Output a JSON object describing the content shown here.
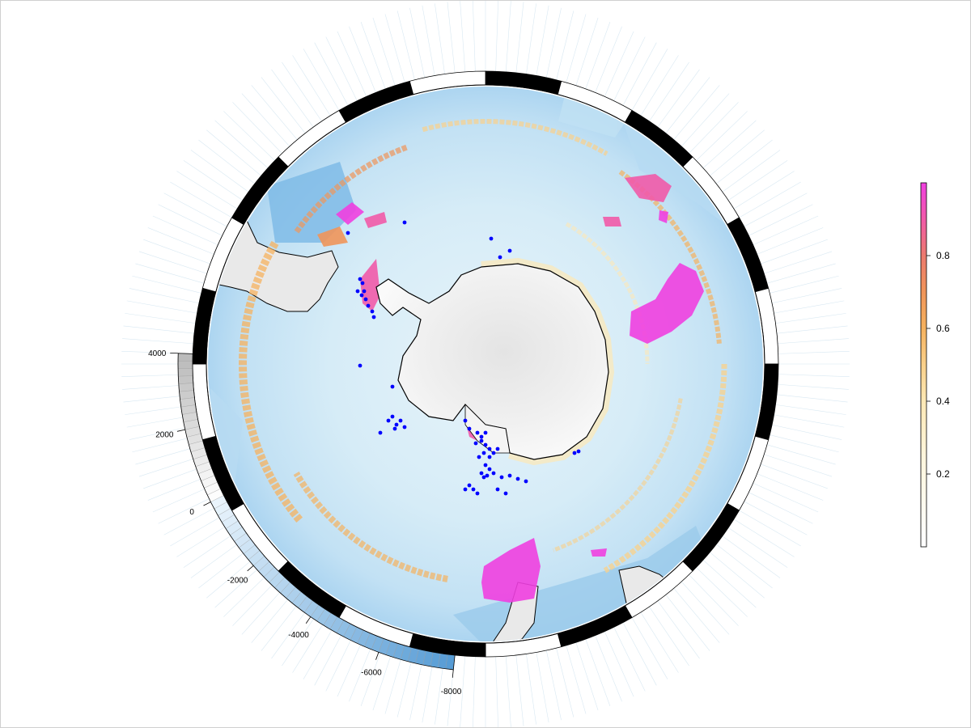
{
  "map": {
    "projection": "south-polar-stereographic",
    "colors": {
      "ocean_deep": "#63a9e0",
      "ocean_mid": "#a9d3f0",
      "ocean_light": "#d6ecf7",
      "land_low": "#f2f2f2",
      "land_high": "#cfcfcf",
      "coastline": "#000000",
      "observations": "#0000ff",
      "graticule_black": "#000000",
      "graticule_white": "#ffffff"
    }
  },
  "probability_legend": {
    "ticks": [
      "0.2",
      "0.4",
      "0.6",
      "0.8"
    ],
    "tick_values": [
      0.2,
      0.4,
      0.6,
      0.8
    ],
    "range": [
      0.0,
      1.0
    ],
    "colors": [
      "#ffffff",
      "#fff5dc",
      "#fde8b5",
      "#f9d08a",
      "#f5b25f",
      "#f0955a",
      "#ec7a6e",
      "#f15aa8",
      "#f03fe0"
    ]
  },
  "bathymetry_legend": {
    "ticks": [
      "4000",
      "2000",
      "0",
      "-2000",
      "-4000",
      "-6000",
      "-8000"
    ],
    "tick_values": [
      4000,
      2000,
      0,
      -2000,
      -4000,
      -6000,
      -8000
    ],
    "range": [
      -8000,
      4000
    ]
  }
}
